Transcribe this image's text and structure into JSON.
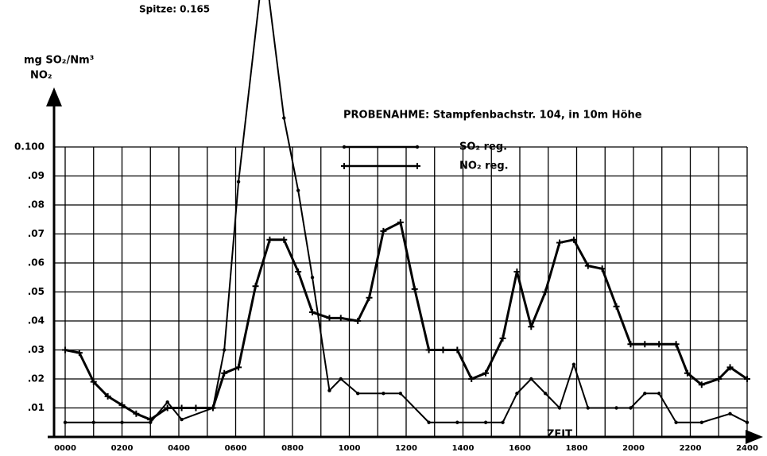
{
  "chart_data": {
    "type": "line",
    "title": "PROBENAHME: Stampfenbachstr. 104, in 10m Höhe",
    "annotation": "Spitze: 0.165",
    "ylabel": "mg SO₂/Nm³",
    "ylabel2": "NO₂",
    "xlabel": "ZEIT",
    "xlim": [
      0,
      24
    ],
    "ylim": [
      0,
      0.15
    ],
    "xticks": [
      {
        "value": 0,
        "label": "0000"
      },
      {
        "value": 2,
        "label": "0200"
      },
      {
        "value": 4,
        "label": "0400"
      },
      {
        "value": 6,
        "label": "0600"
      },
      {
        "value": 8,
        "label": "0800"
      },
      {
        "value": 10,
        "label": "1000"
      },
      {
        "value": 12,
        "label": "1200"
      },
      {
        "value": 14,
        "label": "1400"
      },
      {
        "value": 16,
        "label": "1600"
      },
      {
        "value": 18,
        "label": "1800"
      },
      {
        "value": 20,
        "label": "2000"
      },
      {
        "value": 22,
        "label": "2200"
      },
      {
        "value": 24,
        "label": "2400"
      }
    ],
    "yticks": [
      {
        "value": 0.01,
        "label": ".01"
      },
      {
        "value": 0.02,
        "label": ".02"
      },
      {
        "value": 0.03,
        "label": ".03"
      },
      {
        "value": 0.04,
        "label": ".04"
      },
      {
        "value": 0.05,
        "label": ".05"
      },
      {
        "value": 0.06,
        "label": ".06"
      },
      {
        "value": 0.07,
        "label": ".07"
      },
      {
        "value": 0.08,
        "label": ".08"
      },
      {
        "value": 0.09,
        "label": ".09"
      },
      {
        "value": 0.1,
        "label": "0.100"
      }
    ],
    "grid": true,
    "legend": "top-center",
    "series": [
      {
        "name": "SO₂ reg.",
        "color": "#000000",
        "marker": "dot",
        "x": [
          0,
          1,
          2,
          3,
          3.6,
          4.1,
          5.2,
          5.6,
          6.1,
          7,
          7.7,
          8.2,
          8.7,
          9.3,
          9.7,
          10.3,
          11.2,
          11.8,
          12.8,
          13.8,
          14.8,
          15.4,
          15.9,
          16.4,
          16.9,
          17.4,
          17.9,
          18.4,
          19.4,
          19.9,
          20.4,
          20.9,
          21.5,
          22.4,
          23.4,
          24
        ],
        "values": [
          0.005,
          0.005,
          0.005,
          0.005,
          0.012,
          0.006,
          0.01,
          0.03,
          0.088,
          0.165,
          0.11,
          0.085,
          0.055,
          0.016,
          0.02,
          0.015,
          0.015,
          0.015,
          0.005,
          0.005,
          0.005,
          0.005,
          0.015,
          0.02,
          0.015,
          0.01,
          0.025,
          0.01,
          0.01,
          0.01,
          0.015,
          0.015,
          0.005,
          0.005,
          0.008,
          0.005
        ]
      },
      {
        "name": "NO₂ reg.",
        "color": "#000000",
        "marker": "plus",
        "x": [
          0,
          0.5,
          1,
          1.5,
          2,
          2.5,
          3,
          3.6,
          4.1,
          4.6,
          5.2,
          5.6,
          6.1,
          6.7,
          7.2,
          7.7,
          8.2,
          8.7,
          9.3,
          9.7,
          10.3,
          10.7,
          11.2,
          11.8,
          12.3,
          12.8,
          13.3,
          13.8,
          14.3,
          14.8,
          15.4,
          15.9,
          16.4,
          16.9,
          17.4,
          17.9,
          18.4,
          18.9,
          19.4,
          19.9,
          20.4,
          20.9,
          21.5,
          21.9,
          22.4,
          23,
          23.4,
          24
        ],
        "values": [
          0.03,
          0.029,
          0.019,
          0.014,
          0.011,
          0.008,
          0.006,
          0.01,
          0.01,
          0.01,
          0.01,
          0.022,
          0.024,
          0.052,
          0.068,
          0.068,
          0.057,
          0.043,
          0.041,
          0.041,
          0.04,
          0.048,
          0.071,
          0.074,
          0.051,
          0.03,
          0.03,
          0.03,
          0.02,
          0.022,
          0.034,
          0.057,
          0.038,
          0.05,
          0.067,
          0.068,
          0.059,
          0.058,
          0.045,
          0.032,
          0.032,
          0.032,
          0.032,
          0.022,
          0.018,
          0.02,
          0.024,
          0.02
        ]
      }
    ]
  }
}
